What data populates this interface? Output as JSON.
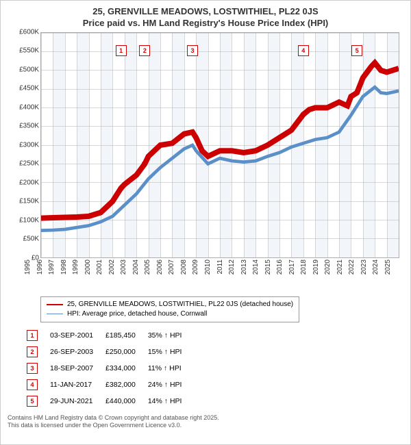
{
  "title_line1": "25, GRENVILLE MEADOWS, LOSTWITHIEL, PL22 0JS",
  "title_line2": "Price paid vs. HM Land Registry's House Price Index (HPI)",
  "chart": {
    "type": "line",
    "x_start": 1995,
    "x_end": 2025,
    "x_ticks": [
      1995,
      1996,
      1997,
      1998,
      1999,
      2000,
      2001,
      2002,
      2003,
      2004,
      2005,
      2006,
      2007,
      2008,
      2009,
      2010,
      2011,
      2012,
      2013,
      2014,
      2015,
      2016,
      2017,
      2018,
      2019,
      2020,
      2021,
      2022,
      2023,
      2024,
      2025
    ],
    "y_min": 0,
    "y_max": 600000,
    "y_ticks": [
      0,
      50000,
      100000,
      150000,
      200000,
      250000,
      300000,
      350000,
      400000,
      450000,
      500000,
      550000,
      600000
    ],
    "y_tick_labels": [
      "£0",
      "£50K",
      "£100K",
      "£150K",
      "£200K",
      "£250K",
      "£300K",
      "£350K",
      "£400K",
      "£450K",
      "£500K",
      "£550K",
      "£600K"
    ],
    "vband_color": "#d9e6f2",
    "grid_color": "#b0b0b0",
    "series": [
      {
        "name": "25, GRENVILLE MEADOWS, LOSTWITHIEL, PL22 0JS (detached house)",
        "color": "#cc0000",
        "width": 2,
        "points": [
          [
            1995,
            105000
          ],
          [
            1996,
            106000
          ],
          [
            1997,
            107000
          ],
          [
            1998,
            108000
          ],
          [
            1999,
            110000
          ],
          [
            2000,
            120000
          ],
          [
            2001,
            150000
          ],
          [
            2001.7,
            185000
          ],
          [
            2002,
            195000
          ],
          [
            2003,
            220000
          ],
          [
            2003.7,
            250000
          ],
          [
            2004,
            270000
          ],
          [
            2005,
            300000
          ],
          [
            2006,
            305000
          ],
          [
            2007,
            330000
          ],
          [
            2007.7,
            335000
          ],
          [
            2008,
            320000
          ],
          [
            2008.5,
            285000
          ],
          [
            2009,
            270000
          ],
          [
            2010,
            285000
          ],
          [
            2011,
            285000
          ],
          [
            2012,
            280000
          ],
          [
            2013,
            285000
          ],
          [
            2014,
            300000
          ],
          [
            2015,
            320000
          ],
          [
            2016,
            340000
          ],
          [
            2017,
            382000
          ],
          [
            2017.5,
            395000
          ],
          [
            2018,
            400000
          ],
          [
            2019,
            400000
          ],
          [
            2020,
            415000
          ],
          [
            2020.7,
            405000
          ],
          [
            2021,
            430000
          ],
          [
            2021.5,
            440000
          ],
          [
            2022,
            480000
          ],
          [
            2022.7,
            510000
          ],
          [
            2023,
            520000
          ],
          [
            2023.5,
            500000
          ],
          [
            2024,
            495000
          ],
          [
            2024.5,
            500000
          ],
          [
            2025,
            505000
          ]
        ]
      },
      {
        "name": "HPI: Average price, detached house, Cornwall",
        "color": "#5a8fc8",
        "width": 1.2,
        "points": [
          [
            1995,
            72000
          ],
          [
            1996,
            73000
          ],
          [
            1997,
            75000
          ],
          [
            1998,
            80000
          ],
          [
            1999,
            85000
          ],
          [
            2000,
            95000
          ],
          [
            2001,
            110000
          ],
          [
            2002,
            140000
          ],
          [
            2003,
            170000
          ],
          [
            2004,
            210000
          ],
          [
            2005,
            240000
          ],
          [
            2006,
            265000
          ],
          [
            2007,
            290000
          ],
          [
            2007.7,
            300000
          ],
          [
            2008,
            285000
          ],
          [
            2009,
            250000
          ],
          [
            2010,
            265000
          ],
          [
            2011,
            258000
          ],
          [
            2012,
            255000
          ],
          [
            2013,
            258000
          ],
          [
            2014,
            270000
          ],
          [
            2015,
            280000
          ],
          [
            2016,
            295000
          ],
          [
            2017,
            305000
          ],
          [
            2018,
            315000
          ],
          [
            2019,
            320000
          ],
          [
            2020,
            335000
          ],
          [
            2021,
            380000
          ],
          [
            2022,
            430000
          ],
          [
            2023,
            455000
          ],
          [
            2023.5,
            440000
          ],
          [
            2024,
            438000
          ],
          [
            2025,
            445000
          ]
        ]
      }
    ],
    "sale_markers": [
      {
        "n": 1,
        "x": 2001.7,
        "y": 185000
      },
      {
        "n": 2,
        "x": 2003.7,
        "y": 250000
      },
      {
        "n": 3,
        "x": 2007.7,
        "y": 335000
      },
      {
        "n": 4,
        "x": 2017.0,
        "y": 382000
      },
      {
        "n": 5,
        "x": 2021.5,
        "y": 440000
      }
    ]
  },
  "legend": [
    {
      "color": "#cc0000",
      "label": "25, GRENVILLE MEADOWS, LOSTWITHIEL, PL22 0JS (detached house)",
      "width": 2
    },
    {
      "color": "#5a8fc8",
      "label": "HPI: Average price, detached house, Cornwall",
      "width": 1.2
    }
  ],
  "sales": [
    {
      "n": "1",
      "date": "03-SEP-2001",
      "price": "£185,450",
      "pct": "35% ↑ HPI"
    },
    {
      "n": "2",
      "date": "26-SEP-2003",
      "price": "£250,000",
      "pct": "15% ↑ HPI"
    },
    {
      "n": "3",
      "date": "18-SEP-2007",
      "price": "£334,000",
      "pct": "11% ↑ HPI"
    },
    {
      "n": "4",
      "date": "11-JAN-2017",
      "price": "£382,000",
      "pct": "24% ↑ HPI"
    },
    {
      "n": "5",
      "date": "29-JUN-2021",
      "price": "£440,000",
      "pct": "14% ↑ HPI"
    }
  ],
  "footnote1": "Contains HM Land Registry data © Crown copyright and database right 2025.",
  "footnote2": "This data is licensed under the Open Government Licence v3.0."
}
